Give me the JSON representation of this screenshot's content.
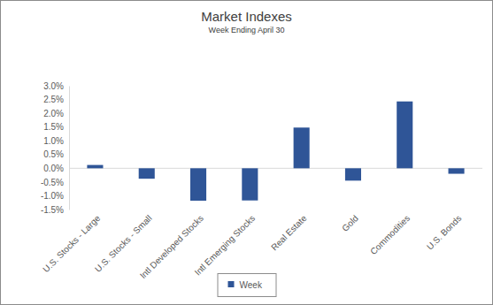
{
  "chart_data": {
    "type": "bar",
    "title": "Market Indexes",
    "subtitle": "Week Ending April 30",
    "categories": [
      "U.S. Stocks - Large",
      "U.S. Stocks - Small",
      "Intl Developed Stocks",
      "Intl Emerging Stocks",
      "Real Estate",
      "Gold",
      "Commodities",
      "U.S. Bonds"
    ],
    "series": [
      {
        "name": "Week",
        "color": "#2f5597",
        "values": [
          0.12,
          -0.38,
          -1.18,
          -1.17,
          1.48,
          -0.45,
          2.43,
          -0.2
        ]
      }
    ],
    "ylim": [
      -1.5,
      3
    ],
    "yticks": [
      {
        "value": -1.5,
        "label": "-1.5%"
      },
      {
        "value": -1,
        "label": "-1.0%"
      },
      {
        "value": -0.5,
        "label": "-0.5%"
      },
      {
        "value": 0,
        "label": "0.0%"
      },
      {
        "value": 0.5,
        "label": "0.5%"
      },
      {
        "value": 1,
        "label": "1.0%"
      },
      {
        "value": 1.5,
        "label": "1.5%"
      },
      {
        "value": 2,
        "label": "2.0%"
      },
      {
        "value": 2.5,
        "label": "2.5%"
      },
      {
        "value": 3,
        "label": "3.0%"
      }
    ],
    "grid": false,
    "legend": "bottom"
  }
}
